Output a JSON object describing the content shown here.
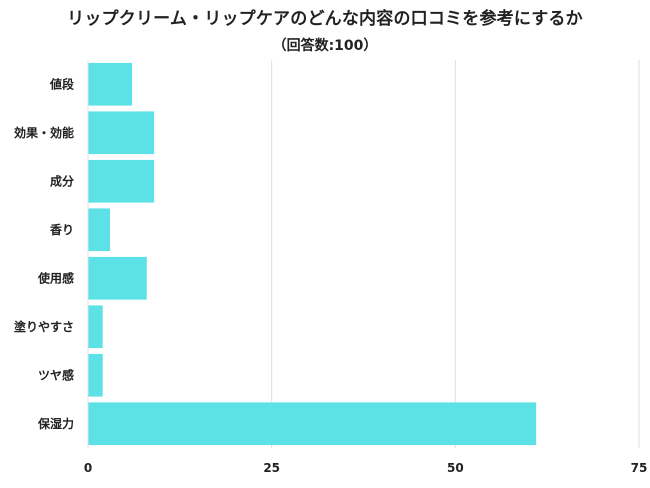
{
  "chart_data": {
    "type": "bar",
    "orientation": "horizontal",
    "title": "リップクリーム・リップケアのどんな内容の口コミを参考にするか",
    "subtitle": "（回答数:100）",
    "categories": [
      "値段",
      "効果・効能",
      "成分",
      "香り",
      "使用感",
      "塗りやすさ",
      "ツヤ感",
      "保湿力"
    ],
    "values": [
      6,
      9,
      9,
      3,
      8,
      2,
      2,
      61
    ],
    "xlim": [
      0,
      75
    ],
    "xticks": [
      0,
      25,
      50,
      75
    ],
    "xtick_labels": [
      "0",
      "25",
      "50",
      "75"
    ],
    "grid": "vertical",
    "bar_color": "#5ce1e6",
    "xlabel": "",
    "ylabel": ""
  }
}
